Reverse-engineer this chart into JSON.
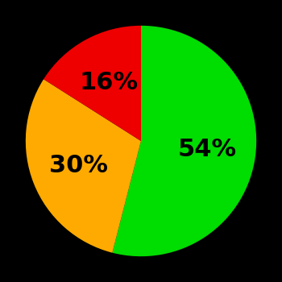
{
  "slices": [
    54,
    30,
    16
  ],
  "colors": [
    "#00dd00",
    "#ffaa00",
    "#ee0000"
  ],
  "labels": [
    "54%",
    "30%",
    "16%"
  ],
  "background_color": "#000000",
  "label_fontsize": 22,
  "label_fontweight": "bold",
  "startangle": 90,
  "figsize": [
    3.5,
    3.5
  ],
  "dpi": 100
}
